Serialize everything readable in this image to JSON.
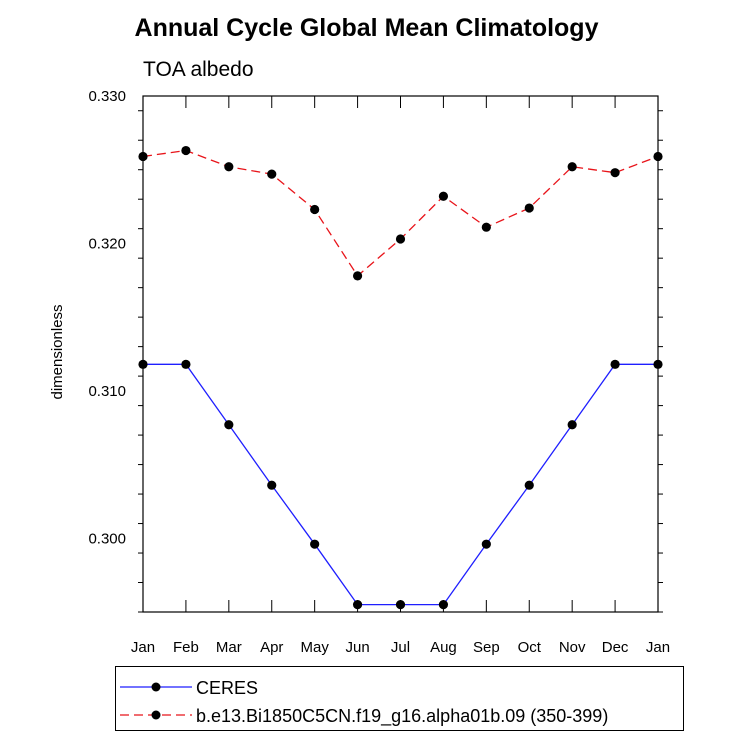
{
  "chart_data": {
    "type": "line",
    "title": "Annual Cycle Global Mean Climatology",
    "subtitle": "TOA albedo",
    "xlabel": "",
    "ylabel": "dimensionless",
    "categories": [
      "Jan",
      "Feb",
      "Mar",
      "Apr",
      "May",
      "Jun",
      "Jul",
      "Aug",
      "Sep",
      "Oct",
      "Nov",
      "Dec",
      "Jan"
    ],
    "ylim": [
      0.295,
      0.33
    ],
    "yticks": [
      0.3,
      0.31,
      0.32,
      0.33
    ],
    "ytick_labels": [
      "0.300",
      "0.310",
      "0.320",
      "0.330"
    ],
    "series": [
      {
        "name": "CERES",
        "color": "#1f1fff",
        "dash": "solid",
        "values": [
          0.3118,
          0.3118,
          0.3077,
          0.3036,
          0.2996,
          0.2955,
          0.2955,
          0.2955,
          0.2996,
          0.3036,
          0.3077,
          0.3118,
          0.3118
        ]
      },
      {
        "name": "b.e13.Bi1850C5CN.f19_g16.alpha01b.09 (350-399)",
        "color": "#e8141a",
        "dash": "dashed",
        "values": [
          0.3259,
          0.3263,
          0.3252,
          0.3247,
          0.3223,
          0.3178,
          0.3203,
          0.3232,
          0.3211,
          0.3224,
          0.3252,
          0.3248,
          0.3259
        ]
      }
    ],
    "legend_position": "bottom"
  }
}
